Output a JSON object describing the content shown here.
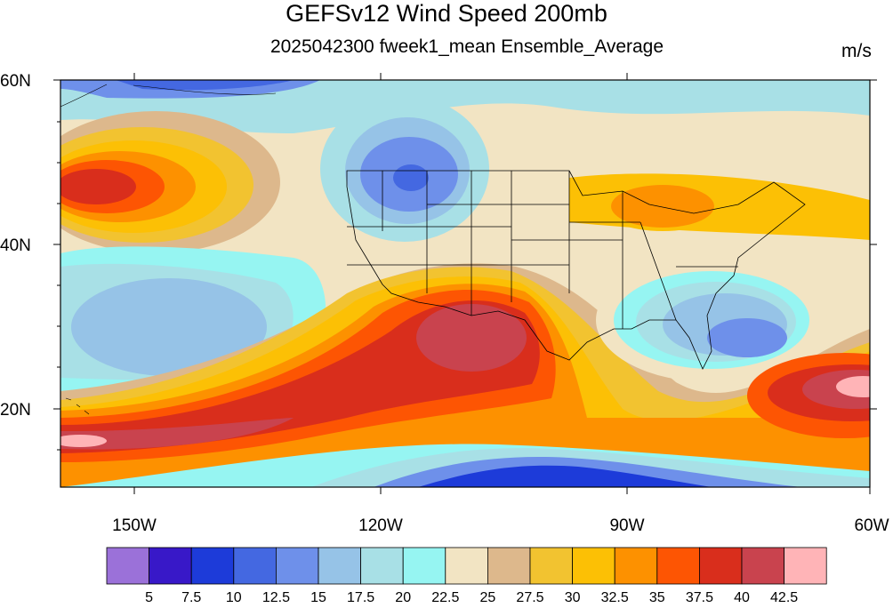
{
  "title": "GEFSv12 Wind Speed 200mb",
  "subtitle": "2025042300 fweek1_mean Ensemble_Average",
  "units": "m/s",
  "map": {
    "region": "North Pacific and Contiguous United States",
    "lon_range": [
      -160,
      -60
    ],
    "lat_range": [
      10,
      60
    ],
    "lat_ticks": [
      "60N",
      "40N",
      "20N"
    ],
    "lon_ticks": [
      "150W",
      "120W",
      "90W",
      "60W"
    ]
  },
  "colorbar": {
    "colors": [
      "#9b71d9",
      "#3818c8",
      "#1d3bd9",
      "#4468e1",
      "#6e90ea",
      "#96c3e7",
      "#a8e0e6",
      "#96f5f2",
      "#f2e4c3",
      "#ddb88c",
      "#f2c330",
      "#fcc005",
      "#fd9100",
      "#fd5503",
      "#d92e1c",
      "#c9434e",
      "#ffb4b7"
    ],
    "labels": [
      "5",
      "7.5",
      "10",
      "12.5",
      "15",
      "17.5",
      "20",
      "22.5",
      "25",
      "27.5",
      "30",
      "32.5",
      "35",
      "37.5",
      "40",
      "42.5"
    ]
  }
}
